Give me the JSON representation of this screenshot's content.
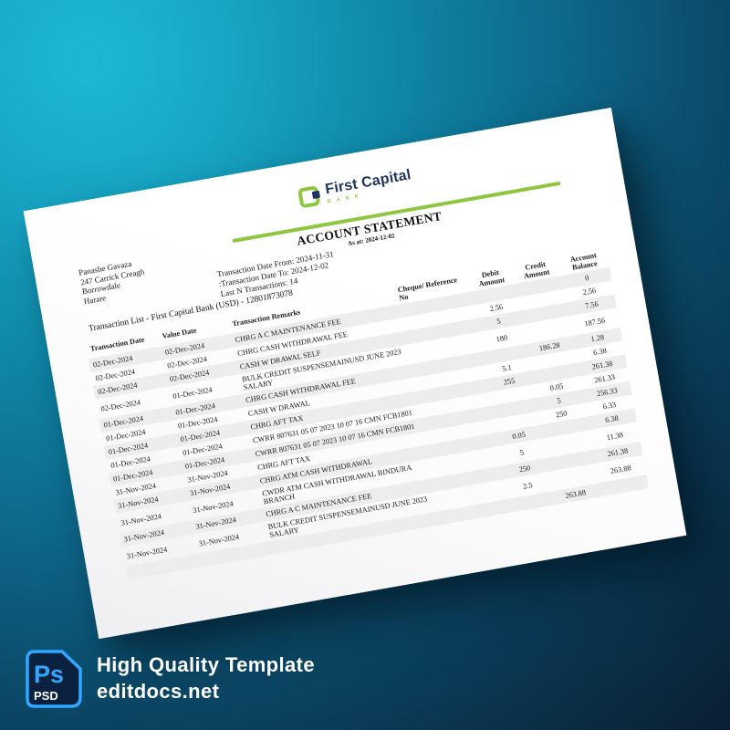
{
  "badge": {
    "ps_label": "Ps",
    "psd_label": "PSD",
    "line1": "High Quality Template",
    "line2": "editdocs.net",
    "accent": "#31a8ff",
    "icon_bg": "#0a2140"
  },
  "document": {
    "logo": {
      "brand": "First Capital",
      "sub": "B A N K",
      "green": "#8dc63f",
      "navy": "#1d3461"
    },
    "title": "ACCOUNT STATEMENT",
    "as_at": "As at: 2024-12-02",
    "address_lines": [
      "Panashe Gavaza",
      "247 Carrick Creagh",
      "Borrowdale",
      "Harare"
    ],
    "meta_lines": [
      "Transaction Date From: 2024-11-31",
      ":Transaction Date To: 2024-12-02",
      "Last N Transactions: 14"
    ],
    "list_title": "Transaction List - First Capital Bank (USD) - 12801873078",
    "table": {
      "headers": [
        "Transaction Date",
        "Value Date",
        "Transaction Remarks",
        "Cheque/ Reference No",
        "Debit Amount",
        "Credit Amount",
        "Account Balance"
      ],
      "rows": [
        {
          "td": "02-Dec-2024",
          "vd": "02-Dec-2024",
          "remarks": "CHRG A C MAINTENANCE FEE",
          "ref": "",
          "debit": "",
          "credit": "",
          "balance": "0"
        },
        {
          "td": "02-Dec-2024",
          "vd": "02-Dec-2024",
          "remarks": "CHRG CASH WITHDRAWAL FEE",
          "ref": "",
          "debit": "2.56",
          "credit": "",
          "balance": "2.56"
        },
        {
          "td": "02-Dec-2024",
          "vd": "02-Dec-2024",
          "remarks": "CASH W DRAWAL SELF",
          "ref": "",
          "debit": "5",
          "credit": "",
          "balance": "7.56"
        },
        {
          "td": "02-Dec-2024",
          "vd": "01-Dec-2024",
          "remarks": "BULK CREDIT SUSPENSEMAINUSD JUNE 2023\nSALARY",
          "ref": "",
          "debit": "180",
          "credit": "",
          "balance": "187.56"
        },
        {
          "td": "01-Dec-2024",
          "vd": "01-Dec-2024",
          "remarks": "CHRG CASH WITHDRAWAL FEE",
          "ref": "",
          "debit": "",
          "credit": "186.28",
          "balance": "1.28"
        },
        {
          "td": "01-Dec-2024",
          "vd": "01-Dec-2024",
          "remarks": "CASH W DRAWAL",
          "ref": "",
          "debit": "5.1",
          "credit": "",
          "balance": "6.38"
        },
        {
          "td": "01-Dec-2024",
          "vd": "01-Dec-2024",
          "remarks": "CHRG AFT TAX",
          "ref": "",
          "debit": "255",
          "credit": "",
          "balance": "261.38"
        },
        {
          "td": "01-Dec-2024",
          "vd": "01-Dec-2024",
          "remarks": "CWRR 807631 05 07 2023 10 07 16 CMN FCB1801",
          "ref": "",
          "debit": "",
          "credit": "0.05",
          "balance": "261.33"
        },
        {
          "td": "01-Dec-2024",
          "vd": "01-Dec-2024",
          "remarks": "CWRR 807631 05 07 2023 10 07 16 CMN FCB1801",
          "ref": "",
          "debit": "",
          "credit": "5",
          "balance": "256.33"
        },
        {
          "td": "31-Nov-2024",
          "vd": "31-Nov-2024",
          "remarks": "CHRG AFT TAX",
          "ref": "",
          "debit": "",
          "credit": "250",
          "balance": "6.33"
        },
        {
          "td": "31-Nov-2024",
          "vd": "31-Nov-2024",
          "remarks": "CHRG ATM CASH WITHDRAWAL",
          "ref": "",
          "debit": "0.05",
          "credit": "",
          "balance": "6.38"
        },
        {
          "td": "31-Nov-2024",
          "vd": "31-Nov-2024",
          "remarks": "CWDR ATM CASH WITHDRAWAL BINDURA BRANCH",
          "ref": "",
          "debit": "5",
          "credit": "",
          "balance": "11.38"
        },
        {
          "td": "31-Nov-2024",
          "vd": "31-Nov-2024",
          "remarks": "CHRG A C MAINTENANCE FEE",
          "ref": "",
          "debit": "250",
          "credit": "",
          "balance": "261.38"
        },
        {
          "td": "31-Nov-2024",
          "vd": "31-Nov-2024",
          "remarks": "BULK CREDIT SUSPENSEMAINUSD JUNE 2023\nSALARY",
          "ref": "",
          "debit": "2.5",
          "credit": "",
          "balance": "263.88"
        },
        {
          "td": "",
          "vd": "",
          "remarks": "",
          "ref": "",
          "debit": "",
          "credit": "263.88",
          "balance": ""
        }
      ]
    }
  }
}
